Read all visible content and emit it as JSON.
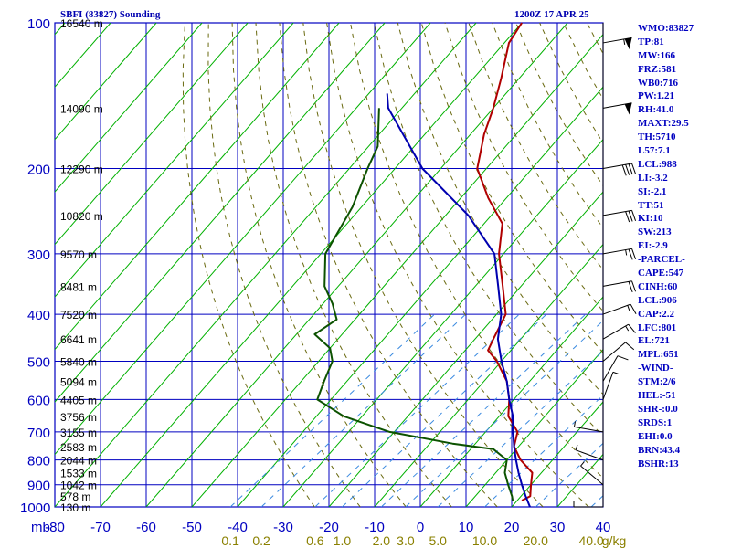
{
  "header": {
    "station": "SBFI (83827) Sounding",
    "time": "1200Z 17 APR 25"
  },
  "indices": [
    "WMO:83827",
    "TP:81",
    "MW:166",
    "FRZ:581",
    "WB0:716",
    "PW:1.21",
    "RH:41.0",
    "MAXT:29.5",
    "TH:5710",
    "L57:7.1",
    "LCL:988",
    "LI:-3.2",
    "SI:-2.1",
    "TT:51",
    "KI:10",
    "SW:213",
    "EI:-2.9",
    "-PARCEL-",
    "CAPE:547",
    "CINH:60",
    "LCL:906",
    "CAP:2.2",
    "LFC:801",
    "EL:721",
    "MPL:651",
    "-WIND-",
    "STM:2/6",
    "HEL:-51",
    "SHR-:0.0",
    "SRDS:1",
    "EHI:0.0",
    "BRN:43.4",
    "BSHR:13"
  ],
  "chart_data": {
    "type": "line",
    "title": "SBFI (83827) Sounding",
    "xlabel": "",
    "ylabel": "mb",
    "y_unit_label": "mb",
    "pressure_levels": [
      100,
      200,
      300,
      400,
      500,
      600,
      700,
      800,
      900,
      1000
    ],
    "temperature_ticks": [
      -80,
      -70,
      -60,
      -50,
      -40,
      -30,
      -20,
      -10,
      0,
      10,
      20,
      30,
      40
    ],
    "mixing_ratio_ticks": [
      "0.1",
      "0.2",
      "0.6",
      "1.0",
      "2.0",
      "3.0",
      "5.0",
      "10.0",
      "20.0",
      "40.0"
    ],
    "mixing_ratio_unit": "g/kg",
    "height_labels": [
      {
        "p": 100,
        "label": "16540 m"
      },
      {
        "p": 150,
        "label": "14090 m"
      },
      {
        "p": 200,
        "label": "12290 m"
      },
      {
        "p": 250,
        "label": "10820 m"
      },
      {
        "p": 300,
        "label": "9570 m"
      },
      {
        "p": 350,
        "label": "8481 m"
      },
      {
        "p": 400,
        "label": "7520 m"
      },
      {
        "p": 450,
        "label": "6641 m"
      },
      {
        "p": 500,
        "label": "5840 m"
      },
      {
        "p": 550,
        "label": "5094 m"
      },
      {
        "p": 600,
        "label": "4405 m"
      },
      {
        "p": 650,
        "label": "3756 m"
      },
      {
        "p": 700,
        "label": "3155 m"
      },
      {
        "p": 750,
        "label": "2583 m"
      },
      {
        "p": 800,
        "label": "2044 m"
      },
      {
        "p": 850,
        "label": "1533 m"
      },
      {
        "p": 900,
        "label": "1042 m"
      },
      {
        "p": 950,
        "label": "578 m"
      },
      {
        "p": 1000,
        "label": "130 m"
      }
    ],
    "series": [
      {
        "color": "#b00000",
        "points": [
          [
            100,
            -70
          ],
          [
            110,
            -69
          ],
          [
            130,
            -64
          ],
          [
            150,
            -60
          ],
          [
            170,
            -57
          ],
          [
            200,
            -52
          ],
          [
            230,
            -44
          ],
          [
            260,
            -36
          ],
          [
            300,
            -31
          ],
          [
            350,
            -24
          ],
          [
            400,
            -18
          ],
          [
            450,
            -16
          ],
          [
            475,
            -15
          ],
          [
            500,
            -11
          ],
          [
            550,
            -5
          ],
          [
            600,
            -1
          ],
          [
            650,
            2
          ],
          [
            700,
            7
          ],
          [
            750,
            9
          ],
          [
            800,
            13
          ],
          [
            850,
            18
          ],
          [
            900,
            20
          ],
          [
            950,
            22
          ],
          [
            970,
            21
          ]
        ]
      },
      {
        "color": "#0c5200",
        "points": [
          [
            150,
            -85
          ],
          [
            180,
            -78
          ],
          [
            200,
            -76
          ],
          [
            240,
            -72
          ],
          [
            300,
            -69
          ],
          [
            350,
            -63
          ],
          [
            380,
            -58
          ],
          [
            410,
            -54
          ],
          [
            440,
            -56
          ],
          [
            470,
            -50
          ],
          [
            500,
            -47
          ],
          [
            550,
            -45
          ],
          [
            600,
            -43
          ],
          [
            650,
            -34
          ],
          [
            700,
            -21
          ],
          [
            740,
            -5
          ],
          [
            760,
            5
          ],
          [
            800,
            10
          ],
          [
            850,
            12
          ],
          [
            900,
            15
          ],
          [
            950,
            18
          ],
          [
            970,
            19
          ]
        ]
      },
      {
        "color": "#0000b0",
        "points": [
          [
            140,
            -86
          ],
          [
            150,
            -83
          ],
          [
            200,
            -64
          ],
          [
            250,
            -45
          ],
          [
            300,
            -32
          ],
          [
            350,
            -25
          ],
          [
            400,
            -19
          ],
          [
            450,
            -15
          ],
          [
            500,
            -10
          ],
          [
            550,
            -5
          ],
          [
            600,
            -1
          ],
          [
            650,
            3
          ],
          [
            700,
            6
          ],
          [
            750,
            9
          ],
          [
            800,
            12
          ],
          [
            850,
            15
          ],
          [
            900,
            18
          ],
          [
            950,
            21
          ],
          [
            1000,
            24
          ]
        ]
      }
    ],
    "wind_barbs": [
      {
        "p": 110,
        "spd": 55,
        "dir": 260
      },
      {
        "p": 150,
        "spd": 50,
        "dir": 260
      },
      {
        "p": 200,
        "spd": 40,
        "dir": 260
      },
      {
        "p": 250,
        "spd": 30,
        "dir": 260
      },
      {
        "p": 300,
        "spd": 25,
        "dir": 260
      },
      {
        "p": 350,
        "spd": 20,
        "dir": 260
      },
      {
        "p": 400,
        "spd": 15,
        "dir": 250
      },
      {
        "p": 450,
        "spd": 15,
        "dir": 240
      },
      {
        "p": 500,
        "spd": 10,
        "dir": 230
      },
      {
        "p": 550,
        "spd": 10,
        "dir": 210
      },
      {
        "p": 600,
        "spd": 5,
        "dir": 200
      },
      {
        "p": 700,
        "spd": 5,
        "dir": 100
      },
      {
        "p": 800,
        "spd": 5,
        "dir": 110
      },
      {
        "p": 900,
        "spd": 5,
        "dir": 130
      },
      {
        "p": 1000,
        "spd": 5,
        "dir": 90
      }
    ]
  }
}
